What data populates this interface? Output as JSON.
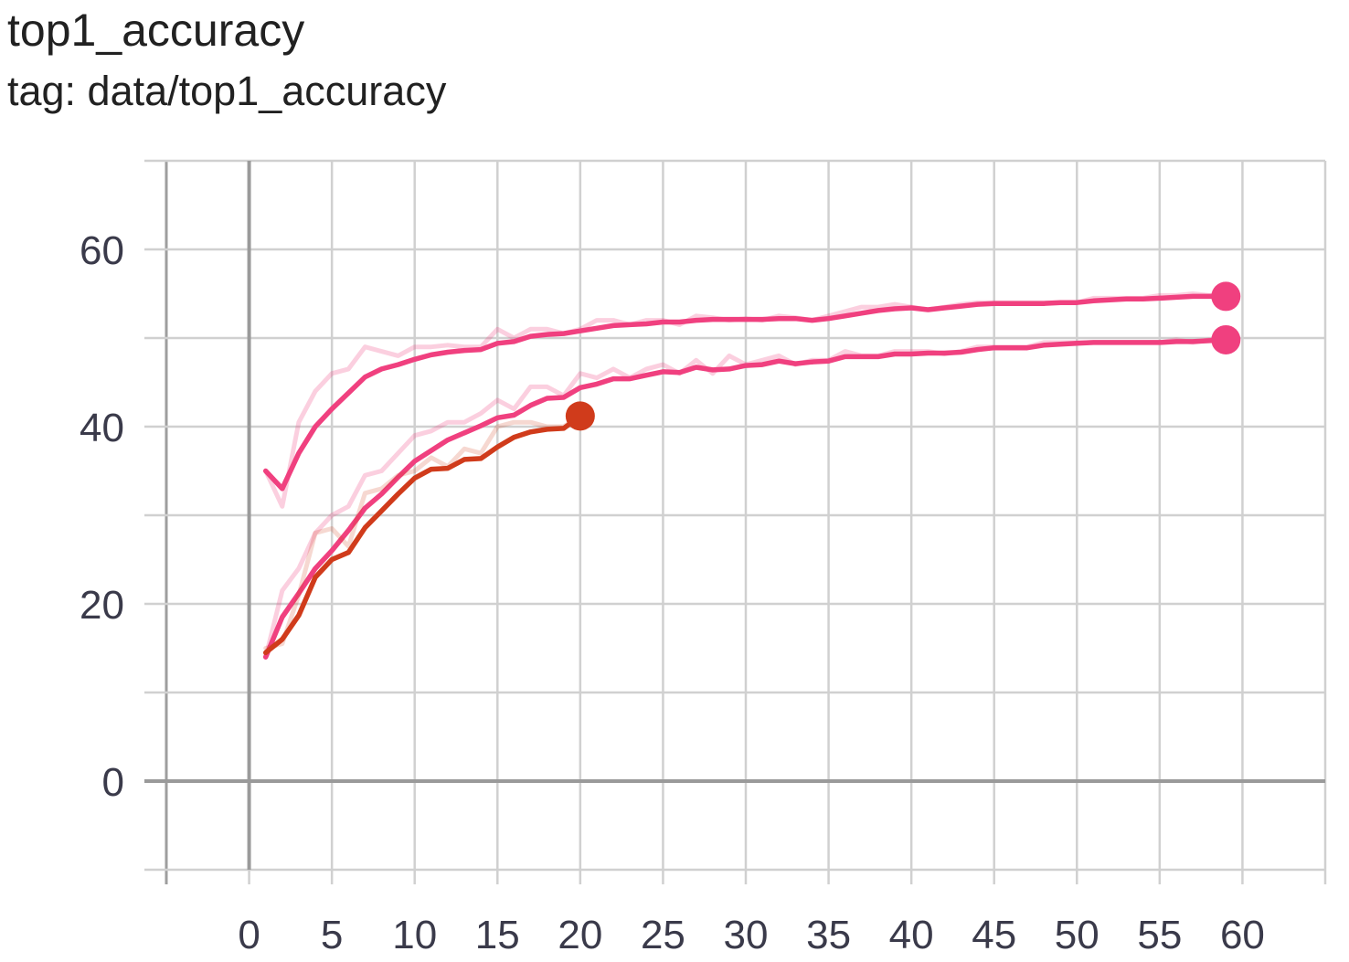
{
  "chart_data": {
    "type": "line",
    "title": "top1_accuracy",
    "subtitle": "tag: data/top1_accuracy",
    "xlabel": "",
    "ylabel": "",
    "xlim": [
      -5,
      65
    ],
    "ylim": [
      -10,
      70
    ],
    "x_ticks": [
      0,
      5,
      10,
      15,
      20,
      25,
      30,
      35,
      40,
      45,
      50,
      55,
      60
    ],
    "y_ticks": [
      0,
      20,
      40,
      60
    ],
    "x_minor_ticks": [
      -5,
      65
    ],
    "y_minor_ticks": [
      -10,
      10,
      30,
      50,
      70
    ],
    "grid": true,
    "series": [
      {
        "color": "#f0407f",
        "raw_opacity": 0.25,
        "x": [
          1,
          2,
          3,
          4,
          5,
          6,
          7,
          8,
          9,
          10,
          11,
          12,
          13,
          14,
          15,
          16,
          17,
          18,
          19,
          20,
          21,
          22,
          23,
          24,
          25,
          26,
          27,
          28,
          29,
          30,
          31,
          32,
          33,
          34,
          35,
          36,
          37,
          38,
          39,
          40,
          41,
          42,
          43,
          44,
          45,
          46,
          47,
          48,
          49,
          50,
          51,
          52,
          53,
          54,
          55,
          56,
          57,
          58,
          59
        ],
        "raw": [
          35,
          31,
          40.5,
          44,
          46,
          46.5,
          49,
          48.5,
          48,
          49,
          49,
          49.2,
          49,
          49,
          51,
          50,
          51,
          51,
          50.5,
          51,
          52,
          52,
          51.5,
          52,
          52,
          51.5,
          52.5,
          52.3,
          52,
          52.2,
          52,
          52.5,
          52.3,
          52,
          52.5,
          53,
          53.5,
          53.5,
          53.8,
          53.5,
          53.2,
          53.5,
          53.8,
          54,
          54,
          54,
          54,
          54,
          54,
          54,
          54.5,
          54.5,
          54.5,
          54.5,
          54.8,
          54.8,
          55,
          54.8,
          55
        ],
        "smoothed": [
          35,
          33,
          37,
          40,
          42,
          43.8,
          45.6,
          46.5,
          47,
          47.6,
          48.1,
          48.4,
          48.6,
          48.7,
          49.4,
          49.6,
          50.2,
          50.4,
          50.5,
          50.8,
          51.1,
          51.4,
          51.5,
          51.6,
          51.8,
          51.8,
          52,
          52.1,
          52.1,
          52.1,
          52.1,
          52.2,
          52.2,
          52,
          52.2,
          52.5,
          52.8,
          53.1,
          53.3,
          53.4,
          53.2,
          53.4,
          53.6,
          53.8,
          53.9,
          53.9,
          53.9,
          53.9,
          54,
          54,
          54.2,
          54.3,
          54.4,
          54.4,
          54.5,
          54.6,
          54.7,
          54.7,
          54.7
        ]
      },
      {
        "color": "#f0407f",
        "raw_opacity": 0.25,
        "x": [
          1,
          2,
          3,
          4,
          5,
          6,
          7,
          8,
          9,
          10,
          11,
          12,
          13,
          14,
          15,
          16,
          17,
          18,
          19,
          20,
          21,
          22,
          23,
          24,
          25,
          26,
          27,
          28,
          29,
          30,
          31,
          32,
          33,
          34,
          35,
          36,
          37,
          38,
          39,
          40,
          41,
          42,
          43,
          44,
          45,
          46,
          47,
          48,
          49,
          50,
          51,
          52,
          53,
          54,
          55,
          56,
          57,
          58,
          59
        ],
        "raw": [
          14,
          21.5,
          24,
          28,
          30,
          31,
          34.5,
          35,
          37,
          39,
          39.5,
          40.5,
          40.5,
          41.5,
          43,
          42,
          44.5,
          44.5,
          43.5,
          46,
          45.5,
          46.5,
          45.5,
          46.5,
          47,
          46,
          47.5,
          46,
          48,
          47,
          47.5,
          48,
          47,
          47.5,
          47.5,
          48.5,
          48,
          48,
          48.5,
          48.5,
          48.5,
          48.2,
          48.5,
          49,
          49,
          49,
          49,
          49.5,
          49.5,
          49.5,
          49.5,
          49.5,
          49.5,
          49.5,
          49.5,
          49.8,
          49.5,
          49.8,
          49.8
        ],
        "smoothed": [
          14,
          18.5,
          21.2,
          24,
          26,
          28.3,
          30.8,
          32.4,
          34.3,
          36.1,
          37.3,
          38.5,
          39.3,
          40.1,
          41,
          41.3,
          42.4,
          43.2,
          43.3,
          44.4,
          44.8,
          45.4,
          45.4,
          45.8,
          46.2,
          46.1,
          46.7,
          46.4,
          46.5,
          46.9,
          47,
          47.4,
          47.1,
          47.3,
          47.4,
          47.9,
          47.9,
          47.9,
          48.2,
          48.2,
          48.3,
          48.3,
          48.4,
          48.7,
          48.9,
          48.9,
          48.9,
          49.2,
          49.3,
          49.4,
          49.5,
          49.5,
          49.5,
          49.5,
          49.5,
          49.6,
          49.6,
          49.7,
          49.8
        ]
      },
      {
        "color": "#d03b1b",
        "raw_opacity": 0.2,
        "x": [
          1,
          2,
          3,
          4,
          5,
          6,
          7,
          8,
          9,
          10,
          11,
          12,
          13,
          14,
          15,
          16,
          17,
          18,
          19,
          20
        ],
        "raw": [
          15,
          15.5,
          21,
          28,
          28.5,
          26.5,
          32.5,
          33,
          34.5,
          35,
          36.5,
          35.5,
          37.5,
          37,
          40,
          40.5,
          40.5,
          40,
          40,
          41.2
        ],
        "smoothed": [
          14.5,
          16,
          18.7,
          23,
          25,
          25.8,
          28.6,
          30.5,
          32.4,
          34.2,
          35.2,
          35.3,
          36.3,
          36.4,
          37.7,
          38.8,
          39.4,
          39.7,
          39.8,
          41.2
        ]
      }
    ]
  }
}
